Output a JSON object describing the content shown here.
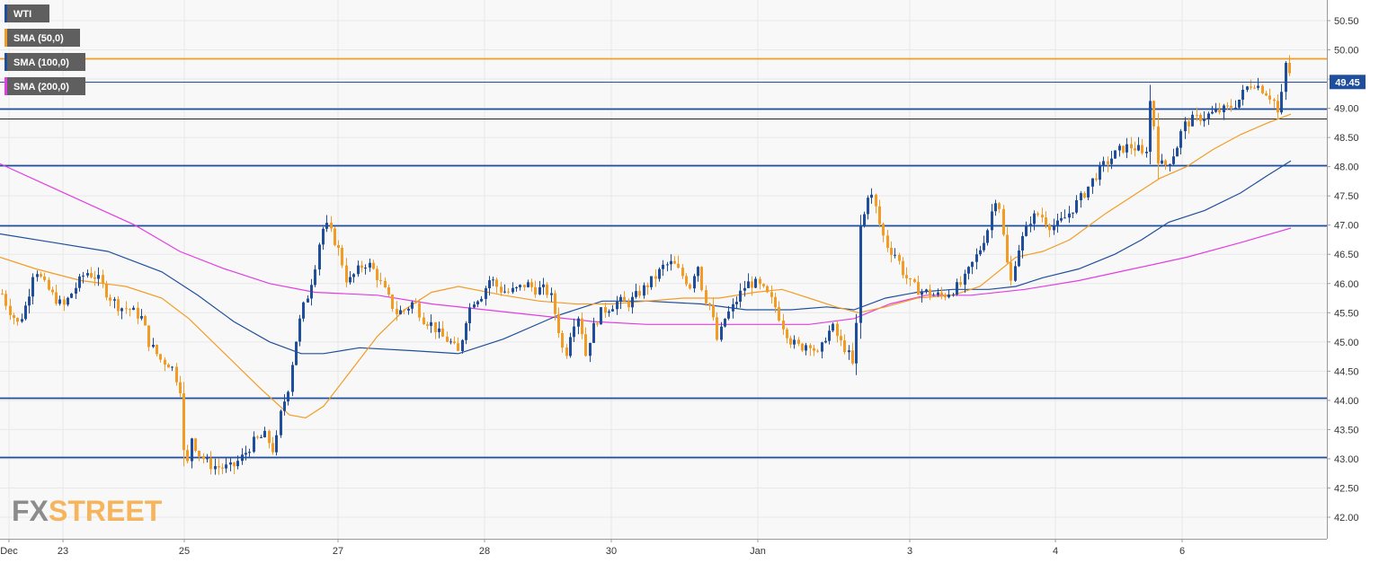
{
  "chart_data": {
    "type": "candlestick",
    "instrument": "WTI",
    "x_axis_labels": [
      "Dec",
      "23",
      "25",
      "27",
      "28",
      "30",
      "Jan",
      "3",
      "4",
      "6"
    ],
    "y_axis": {
      "ticks": [
        "50.50",
        "50.00",
        "49.50",
        "49.00",
        "48.50",
        "48.00",
        "47.50",
        "47.00",
        "46.50",
        "46.00",
        "45.50",
        "45.00",
        "44.50",
        "44.00",
        "43.50",
        "43.00",
        "42.50",
        "42.00"
      ],
      "ylim": [
        41.65,
        50.95
      ],
      "current_price_label": "49.45",
      "current_price": 49.45
    },
    "legend": [
      {
        "label": "WTI",
        "color": "#1f4f9c"
      },
      {
        "label": "SMA (50,0)",
        "color": "#f39c25"
      },
      {
        "label": "SMA (100,0)",
        "color": "#1f4f9c"
      },
      {
        "label": "SMA (200,0)",
        "color": "#e23de2"
      }
    ],
    "horizontal_levels": [
      {
        "value": 49.85,
        "color": "#f39c25"
      },
      {
        "value": 49.0,
        "color": "#1f4f9c"
      },
      {
        "value": 48.82,
        "color": "#222222"
      },
      {
        "value": 48.02,
        "color": "#1f4f9c"
      },
      {
        "value": 47.0,
        "color": "#1f4f9c"
      },
      {
        "value": 44.05,
        "color": "#1f4f9c"
      },
      {
        "value": 43.03,
        "color": "#1f4f9c"
      }
    ],
    "close_path": [
      [
        0,
        45.9
      ],
      [
        8,
        45.6
      ],
      [
        20,
        45.3
      ],
      [
        30,
        45.7
      ],
      [
        38,
        46.3
      ],
      [
        48,
        46.0
      ],
      [
        58,
        45.8
      ],
      [
        70,
        45.6
      ],
      [
        82,
        45.9
      ],
      [
        95,
        46.2
      ],
      [
        108,
        46.1
      ],
      [
        120,
        45.8
      ],
      [
        132,
        45.6
      ],
      [
        145,
        45.55
      ],
      [
        158,
        45.4
      ],
      [
        165,
        45.0
      ],
      [
        178,
        44.7
      ],
      [
        190,
        44.6
      ],
      [
        200,
        44.2
      ],
      [
        206,
        42.6
      ],
      [
        212,
        43.4
      ],
      [
        220,
        43.1
      ],
      [
        232,
        42.9
      ],
      [
        245,
        42.85
      ],
      [
        258,
        42.85
      ],
      [
        270,
        43.05
      ],
      [
        282,
        43.3
      ],
      [
        295,
        43.4
      ],
      [
        305,
        43.1
      ],
      [
        312,
        43.8
      ],
      [
        320,
        44.2
      ],
      [
        327,
        44.9
      ],
      [
        335,
        45.5
      ],
      [
        343,
        45.85
      ],
      [
        350,
        46.3
      ],
      [
        357,
        46.9
      ],
      [
        362,
        47.0
      ],
      [
        370,
        46.8
      ],
      [
        378,
        46.5
      ],
      [
        386,
        46.0
      ],
      [
        396,
        46.2
      ],
      [
        405,
        46.35
      ],
      [
        412,
        46.3
      ],
      [
        420,
        46.1
      ],
      [
        430,
        45.8
      ],
      [
        440,
        45.5
      ],
      [
        450,
        45.55
      ],
      [
        460,
        45.7
      ],
      [
        470,
        45.4
      ],
      [
        480,
        45.3
      ],
      [
        490,
        45.1
      ],
      [
        500,
        45.0
      ],
      [
        510,
        44.8
      ],
      [
        518,
        45.4
      ],
      [
        525,
        45.7
      ],
      [
        535,
        45.8
      ],
      [
        545,
        46.1
      ],
      [
        555,
        45.9
      ],
      [
        565,
        45.85
      ],
      [
        575,
        45.9
      ],
      [
        585,
        46.0
      ],
      [
        595,
        45.9
      ],
      [
        605,
        45.9
      ],
      [
        612,
        45.8
      ],
      [
        620,
        45.3
      ],
      [
        628,
        44.7
      ],
      [
        636,
        45.3
      ],
      [
        645,
        45.5
      ],
      [
        650,
        44.7
      ],
      [
        658,
        45.2
      ],
      [
        668,
        45.5
      ],
      [
        678,
        45.6
      ],
      [
        688,
        45.7
      ],
      [
        698,
        45.65
      ],
      [
        708,
        45.8
      ],
      [
        718,
        45.95
      ],
      [
        728,
        46.1
      ],
      [
        738,
        46.3
      ],
      [
        748,
        46.35
      ],
      [
        758,
        46.15
      ],
      [
        768,
        45.95
      ],
      [
        775,
        46.4
      ],
      [
        782,
        45.8
      ],
      [
        790,
        45.6
      ],
      [
        798,
        45.0
      ],
      [
        806,
        45.4
      ],
      [
        815,
        45.6
      ],
      [
        822,
        45.8
      ],
      [
        830,
        46.0
      ],
      [
        840,
        46.0
      ],
      [
        848,
        45.9
      ],
      [
        856,
        45.75
      ],
      [
        862,
        45.6
      ],
      [
        870,
        45.3
      ],
      [
        880,
        45.0
      ],
      [
        890,
        44.9
      ],
      [
        900,
        45.0
      ],
      [
        910,
        44.75
      ],
      [
        918,
        45.1
      ],
      [
        926,
        45.25
      ],
      [
        934,
        45.0
      ],
      [
        942,
        44.85
      ],
      [
        948,
        44.6
      ],
      [
        952,
        45.1
      ],
      [
        955,
        46.9
      ],
      [
        960,
        47.1
      ],
      [
        966,
        47.6
      ],
      [
        972,
        47.4
      ],
      [
        980,
        46.9
      ],
      [
        988,
        46.6
      ],
      [
        996,
        46.5
      ],
      [
        1004,
        46.2
      ],
      [
        1012,
        46.0
      ],
      [
        1020,
        45.9
      ],
      [
        1030,
        45.85
      ],
      [
        1040,
        45.8
      ],
      [
        1050,
        45.8
      ],
      [
        1060,
        45.9
      ],
      [
        1070,
        46.0
      ],
      [
        1080,
        46.3
      ],
      [
        1090,
        46.6
      ],
      [
        1100,
        47.0
      ],
      [
        1106,
        47.5
      ],
      [
        1112,
        47.3
      ],
      [
        1118,
        46.5
      ],
      [
        1124,
        46.0
      ],
      [
        1130,
        46.5
      ],
      [
        1138,
        46.8
      ],
      [
        1146,
        47.1
      ],
      [
        1156,
        47.2
      ],
      [
        1166,
        47.0
      ],
      [
        1176,
        47.0
      ],
      [
        1186,
        47.15
      ],
      [
        1196,
        47.35
      ],
      [
        1206,
        47.55
      ],
      [
        1216,
        47.8
      ],
      [
        1226,
        48.0
      ],
      [
        1236,
        48.15
      ],
      [
        1246,
        48.3
      ],
      [
        1256,
        48.35
      ],
      [
        1266,
        48.3
      ],
      [
        1274,
        48.1
      ],
      [
        1278,
        49.2
      ],
      [
        1282,
        48.9
      ],
      [
        1288,
        48.1
      ],
      [
        1294,
        48.0
      ],
      [
        1300,
        48.1
      ],
      [
        1308,
        48.3
      ],
      [
        1316,
        48.7
      ],
      [
        1326,
        48.8
      ],
      [
        1336,
        48.85
      ],
      [
        1346,
        48.9
      ],
      [
        1356,
        48.95
      ],
      [
        1366,
        49.0
      ],
      [
        1376,
        49.1
      ],
      [
        1386,
        49.35
      ],
      [
        1394,
        49.45
      ],
      [
        1402,
        49.35
      ],
      [
        1410,
        49.25
      ],
      [
        1418,
        49.1
      ],
      [
        1422,
        48.85
      ],
      [
        1426,
        49.3
      ],
      [
        1430,
        49.8
      ],
      [
        1434,
        49.6
      ],
      [
        1438,
        49.45
      ]
    ],
    "sma_50_path": [
      [
        0,
        46.45
      ],
      [
        40,
        46.25
      ],
      [
        90,
        46.05
      ],
      [
        140,
        45.95
      ],
      [
        180,
        45.75
      ],
      [
        210,
        45.4
      ],
      [
        250,
        44.8
      ],
      [
        290,
        44.2
      ],
      [
        322,
        43.75
      ],
      [
        340,
        43.7
      ],
      [
        360,
        43.9
      ],
      [
        390,
        44.5
      ],
      [
        420,
        45.1
      ],
      [
        450,
        45.55
      ],
      [
        480,
        45.85
      ],
      [
        510,
        45.95
      ],
      [
        560,
        45.8
      ],
      [
        600,
        45.7
      ],
      [
        640,
        45.65
      ],
      [
        680,
        45.65
      ],
      [
        720,
        45.7
      ],
      [
        760,
        45.75
      ],
      [
        800,
        45.75
      ],
      [
        840,
        45.85
      ],
      [
        870,
        45.9
      ],
      [
        900,
        45.75
      ],
      [
        930,
        45.6
      ],
      [
        955,
        45.5
      ],
      [
        985,
        45.6
      ],
      [
        1020,
        45.75
      ],
      [
        1060,
        45.8
      ],
      [
        1090,
        45.95
      ],
      [
        1110,
        46.2
      ],
      [
        1130,
        46.45
      ],
      [
        1160,
        46.55
      ],
      [
        1190,
        46.75
      ],
      [
        1230,
        47.2
      ],
      [
        1260,
        47.5
      ],
      [
        1290,
        47.8
      ],
      [
        1320,
        48.0
      ],
      [
        1350,
        48.3
      ],
      [
        1380,
        48.55
      ],
      [
        1410,
        48.75
      ],
      [
        1436,
        48.9
      ]
    ],
    "sma_100_path": [
      [
        0,
        46.85
      ],
      [
        60,
        46.7
      ],
      [
        120,
        46.55
      ],
      [
        180,
        46.2
      ],
      [
        220,
        45.8
      ],
      [
        260,
        45.35
      ],
      [
        300,
        45.0
      ],
      [
        335,
        44.8
      ],
      [
        360,
        44.8
      ],
      [
        400,
        44.9
      ],
      [
        460,
        44.85
      ],
      [
        510,
        44.8
      ],
      [
        560,
        45.05
      ],
      [
        620,
        45.45
      ],
      [
        670,
        45.7
      ],
      [
        720,
        45.7
      ],
      [
        780,
        45.65
      ],
      [
        830,
        45.55
      ],
      [
        880,
        45.55
      ],
      [
        920,
        45.6
      ],
      [
        950,
        45.55
      ],
      [
        985,
        45.75
      ],
      [
        1020,
        45.85
      ],
      [
        1060,
        45.9
      ],
      [
        1100,
        45.9
      ],
      [
        1130,
        45.95
      ],
      [
        1160,
        46.1
      ],
      [
        1200,
        46.25
      ],
      [
        1240,
        46.5
      ],
      [
        1270,
        46.75
      ],
      [
        1300,
        47.05
      ],
      [
        1340,
        47.25
      ],
      [
        1380,
        47.55
      ],
      [
        1410,
        47.85
      ],
      [
        1436,
        48.1
      ]
    ],
    "sma_200_path": [
      [
        0,
        48.05
      ],
      [
        50,
        47.7
      ],
      [
        100,
        47.35
      ],
      [
        150,
        47.0
      ],
      [
        200,
        46.55
      ],
      [
        250,
        46.25
      ],
      [
        300,
        46.0
      ],
      [
        350,
        45.85
      ],
      [
        420,
        45.8
      ],
      [
        480,
        45.65
      ],
      [
        540,
        45.55
      ],
      [
        600,
        45.45
      ],
      [
        660,
        45.35
      ],
      [
        720,
        45.3
      ],
      [
        780,
        45.3
      ],
      [
        840,
        45.3
      ],
      [
        900,
        45.3
      ],
      [
        950,
        45.4
      ],
      [
        990,
        45.65
      ],
      [
        1030,
        45.8
      ],
      [
        1080,
        45.8
      ],
      [
        1140,
        45.9
      ],
      [
        1200,
        46.05
      ],
      [
        1260,
        46.25
      ],
      [
        1320,
        46.45
      ],
      [
        1380,
        46.7
      ],
      [
        1436,
        46.95
      ]
    ]
  },
  "watermark": {
    "part1": "FX",
    "part2": "STREET",
    "color1": "#8c8c8c",
    "color2": "#f6b45c"
  },
  "colors": {
    "up": "#1f4f9c",
    "down": "#f39c25",
    "grid": "#e8e8e8",
    "plot_bg": "#f8f8f8",
    "price_tag_bg": "#1f4f9c"
  }
}
